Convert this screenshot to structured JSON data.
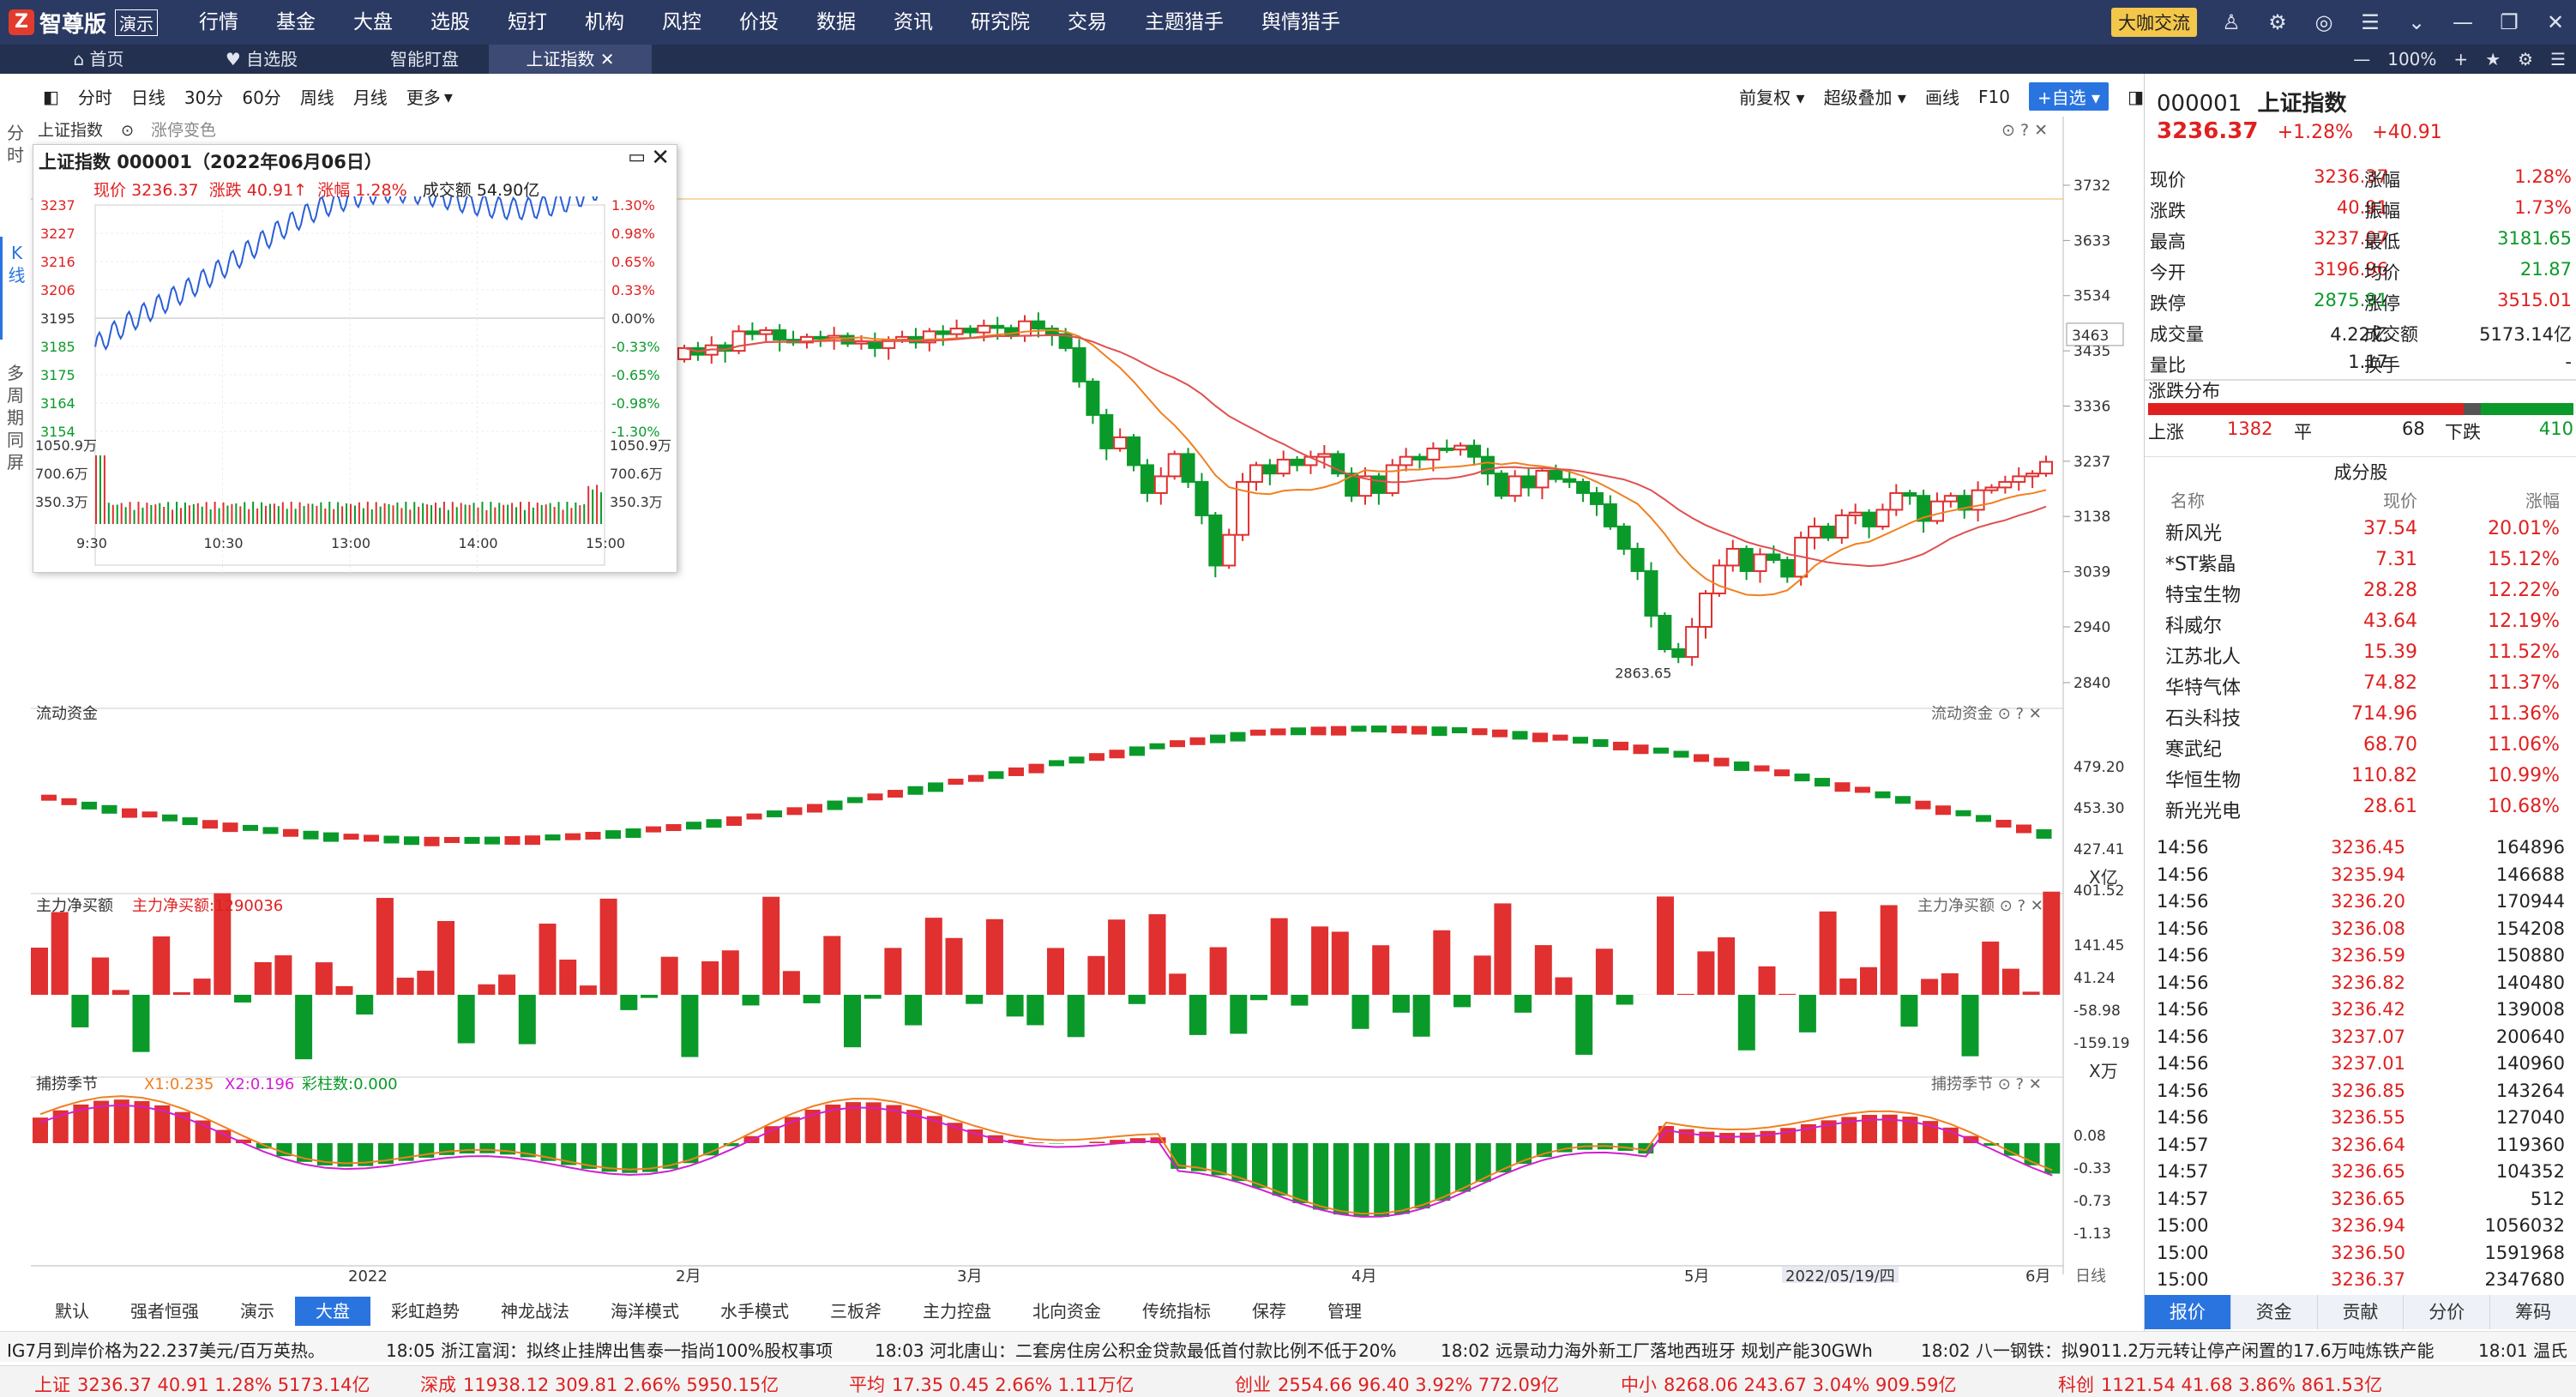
{
  "topbar": {
    "logo_text": "智尊版",
    "demo_label": "演示",
    "menu": [
      "行情",
      "基金",
      "大盘",
      "选股",
      "短打",
      "机构",
      "风控",
      "价投",
      "数据",
      "资讯",
      "研究院",
      "交易",
      "主题猎手",
      "舆情猎手"
    ],
    "talk_label": "大咖交流"
  },
  "tabs": [
    {
      "label": "首页",
      "icon": "home-icon"
    },
    {
      "label": "自选股",
      "icon": "heart-icon"
    },
    {
      "label": "智能盯盘",
      "icon": ""
    },
    {
      "label": "上证指数",
      "icon": "",
      "active": true
    }
  ],
  "zoom": "100%",
  "toolbar": {
    "left": [
      "分时",
      "日线",
      "30分",
      "60分",
      "周线",
      "月线",
      "更多"
    ],
    "right": [
      "前复权",
      "超级叠加",
      "画线",
      "F10"
    ],
    "add_watch": "+自选"
  },
  "vtabs": [
    "分时",
    "K线",
    "多周期同屏"
  ],
  "chart": {
    "legend_main": "上证指数",
    "legend_limit": "涨停变色",
    "y_labels": [
      "3732",
      "3633",
      "3534",
      "3435",
      "3336",
      "3237",
      "3138",
      "3039",
      "2940",
      "2840"
    ],
    "marker_price": "3463",
    "low_label": "2863.65",
    "flow_title": "流动资金",
    "flow_y": [
      "479.20",
      "453.30",
      "427.41",
      "401.52"
    ],
    "flow_unit": "X亿",
    "main_title": "主力净买额",
    "main_value_label": "主力净买额:1290036",
    "main_y": [
      "141.45",
      "41.24",
      "-58.98",
      "-159.19"
    ],
    "main_unit": "X万",
    "season_title": "捕捞季节",
    "season_x1": "X1:0.235",
    "season_x2": "X2:0.196",
    "season_bars": "彩柱数:0.000",
    "season_y": [
      "0.08",
      "-0.33",
      "-0.73",
      "-1.13"
    ],
    "x_labels": [
      "2022",
      "2月",
      "3月",
      "4月",
      "5月",
      "6月"
    ],
    "crosshair_date": "2022/05/19/四",
    "daily_label": "日线"
  },
  "chart_data": {
    "type": "candlestick",
    "title": "上证指数",
    "ylim": [
      2840,
      3732
    ],
    "start_value": 3420,
    "closes": [
      3440,
      3428,
      3445,
      3435,
      3470,
      3465,
      3472,
      3455,
      3450,
      3460,
      3458,
      3462,
      3448,
      3452,
      3440,
      3455,
      3460,
      3450,
      3470,
      3465,
      3475,
      3468,
      3480,
      3476,
      3462,
      3488,
      3475,
      3465,
      3440,
      3380,
      3320,
      3260,
      3280,
      3230,
      3180,
      3210,
      3250,
      3200,
      3140,
      3050,
      3105,
      3200,
      3230,
      3215,
      3240,
      3230,
      3245,
      3250,
      3215,
      3175,
      3210,
      3180,
      3230,
      3245,
      3240,
      3260,
      3258,
      3265,
      3245,
      3215,
      3175,
      3210,
      3190,
      3220,
      3205,
      3200,
      3180,
      3160,
      3120,
      3080,
      3040,
      2960,
      2900,
      2886,
      2940,
      3000,
      3050,
      3080,
      3040,
      3070,
      3060,
      3030,
      3100,
      3120,
      3100,
      3140,
      3145,
      3120,
      3150,
      3180,
      3175,
      3130,
      3165,
      3175,
      3150,
      3185,
      3190,
      3200,
      3210,
      3215,
      3236
    ]
  },
  "popup": {
    "title": "上证指数 000001（2022年06月06日）",
    "now_label": "现价",
    "now_value": "3236.37",
    "chg_label": "涨跌",
    "chg_value": "40.91↑",
    "pct_label": "涨幅",
    "pct_value": "1.28%",
    "amt_label": "成交额",
    "amt_value": "54.90亿",
    "price_ticks": [
      "3237",
      "3227",
      "3216",
      "3206",
      "3195",
      "3185",
      "3175",
      "3164",
      "3154"
    ],
    "pct_ticks": [
      "1.30%",
      "0.98%",
      "0.65%",
      "0.33%",
      "0.00%",
      "-0.33%",
      "-0.65%",
      "-0.98%",
      "-1.30%"
    ],
    "vol_ticks": [
      "1050.9万",
      "700.6万",
      "350.3万"
    ],
    "time_ticks": [
      "9:30",
      "10:30",
      "13:00",
      "14:00",
      "15:00"
    ]
  },
  "quote": {
    "code": "000001",
    "name": "上证指数",
    "price": "3236.37",
    "pct": "+1.28%",
    "chg": "+40.91",
    "rows": [
      [
        "现价",
        "3236.37",
        "涨幅",
        "1.28%"
      ],
      [
        "涨跌",
        "40.91",
        "振幅",
        "1.73%"
      ],
      [
        "最高",
        "3237.07",
        "最低",
        "3181.65"
      ],
      [
        "今开",
        "3196.96",
        "均价",
        "21.87"
      ],
      [
        "跌停",
        "2875.91",
        "涨停",
        "3515.01"
      ],
      [
        "成交量",
        "4.22亿",
        "成交额",
        "5173.14亿"
      ],
      [
        "量比",
        "1.17",
        "换手",
        "-"
      ]
    ],
    "dist_title": "涨跌分布",
    "up_label": "上涨",
    "up_count": "1382",
    "flat_label": "平",
    "flat_count": "68",
    "down_label": "下跌",
    "down_count": "410",
    "comp_title": "成分股",
    "comp_headers": [
      "名称",
      "现价",
      "涨幅"
    ],
    "components": [
      [
        "新风光",
        "37.54",
        "20.01%"
      ],
      [
        "*ST紫晶",
        "7.31",
        "15.12%"
      ],
      [
        "特宝生物",
        "28.28",
        "12.22%"
      ],
      [
        "科威尔",
        "43.64",
        "12.19%"
      ],
      [
        "江苏北人",
        "15.39",
        "11.52%"
      ],
      [
        "华特气体",
        "74.82",
        "11.37%"
      ],
      [
        "石头科技",
        "714.96",
        "11.36%"
      ],
      [
        "寒武纪",
        "68.70",
        "11.06%"
      ],
      [
        "华恒生物",
        "110.82",
        "10.99%"
      ],
      [
        "新光光电",
        "28.61",
        "10.68%"
      ]
    ],
    "ticks": [
      [
        "14:56",
        "3236.45",
        "164896"
      ],
      [
        "14:56",
        "3235.94",
        "146688"
      ],
      [
        "14:56",
        "3236.20",
        "170944"
      ],
      [
        "14:56",
        "3236.08",
        "154208"
      ],
      [
        "14:56",
        "3236.59",
        "150880"
      ],
      [
        "14:56",
        "3236.82",
        "140480"
      ],
      [
        "14:56",
        "3236.42",
        "139008"
      ],
      [
        "14:56",
        "3237.07",
        "200640"
      ],
      [
        "14:56",
        "3237.01",
        "140960"
      ],
      [
        "14:56",
        "3236.85",
        "143264"
      ],
      [
        "14:56",
        "3236.55",
        "127040"
      ],
      [
        "14:57",
        "3236.64",
        "119360"
      ],
      [
        "14:57",
        "3236.65",
        "104352"
      ],
      [
        "14:57",
        "3236.65",
        "512"
      ],
      [
        "15:00",
        "3236.94",
        "1056032"
      ],
      [
        "15:00",
        "3236.50",
        "1591968"
      ],
      [
        "15:00",
        "3236.37",
        "2347680"
      ]
    ],
    "bottom_tabs": [
      "报价",
      "资金",
      "贡献",
      "分价",
      "筹码"
    ]
  },
  "bottom_tools": [
    "默认",
    "强者恒强",
    "演示",
    "大盘",
    "彩虹趋势",
    "神龙战法",
    "海洋模式",
    "水手模式",
    "三板斧",
    "主力控盘",
    "北向资金",
    "传统指标",
    "保荐",
    "管理"
  ],
  "news": [
    "IG7月到岸价格为22.237美元/百万英热。",
    "18:05 浙江富润：拟终止挂牌出售泰一指尚100%股权事项",
    "18:03 河北唐山：二套房住房公积金贷款最低首付款比例不低于20%",
    "18:02 远景动力海外新工厂落地西班牙 规划产能30GWh",
    "18:02 八一钢铁：拟9011.2万元转让停产闲置的17.6万吨炼铁产能",
    "18:01 温氏"
  ],
  "indices": [
    {
      "name": "上证",
      "vals": "3236.37  40.91  1.28%  5173.14亿",
      "color": "#e02020"
    },
    {
      "name": "深成",
      "vals": "11938.12  309.81  2.66%  5950.15亿",
      "color": "#e02020"
    },
    {
      "name": "平均",
      "vals": "17.35  0.45  2.66%  1.11万亿",
      "color": "#e02020"
    },
    {
      "name": "创业",
      "vals": "2554.66  96.40  3.92%  772.09亿",
      "color": "#e02020"
    },
    {
      "name": "中小",
      "vals": "8268.06  243.67  3.04%  909.59亿",
      "color": "#e02020"
    },
    {
      "name": "科创",
      "vals": "1121.54  41.68  3.86%  861.53亿",
      "color": "#e02020"
    }
  ]
}
